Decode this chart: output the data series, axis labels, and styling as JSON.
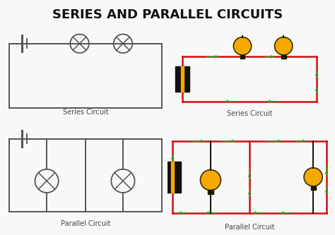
{
  "title": "SERIES AND PARALLEL CIRCUITS",
  "title_fontsize": 13,
  "title_fontweight": "bold",
  "background_color": "#f8f8f8",
  "line_color_black": "#555555",
  "line_color_red": "#cc1111",
  "line_color_green": "#22aa22",
  "bulb_color": "#f5a800",
  "battery_dark": "#222222",
  "label_series1": "Series Circuit",
  "label_series2": "Series Circuit",
  "label_parallel1": "Parallel Circuit",
  "label_parallel2": "Parallel Circuit",
  "label_fontsize": 7
}
